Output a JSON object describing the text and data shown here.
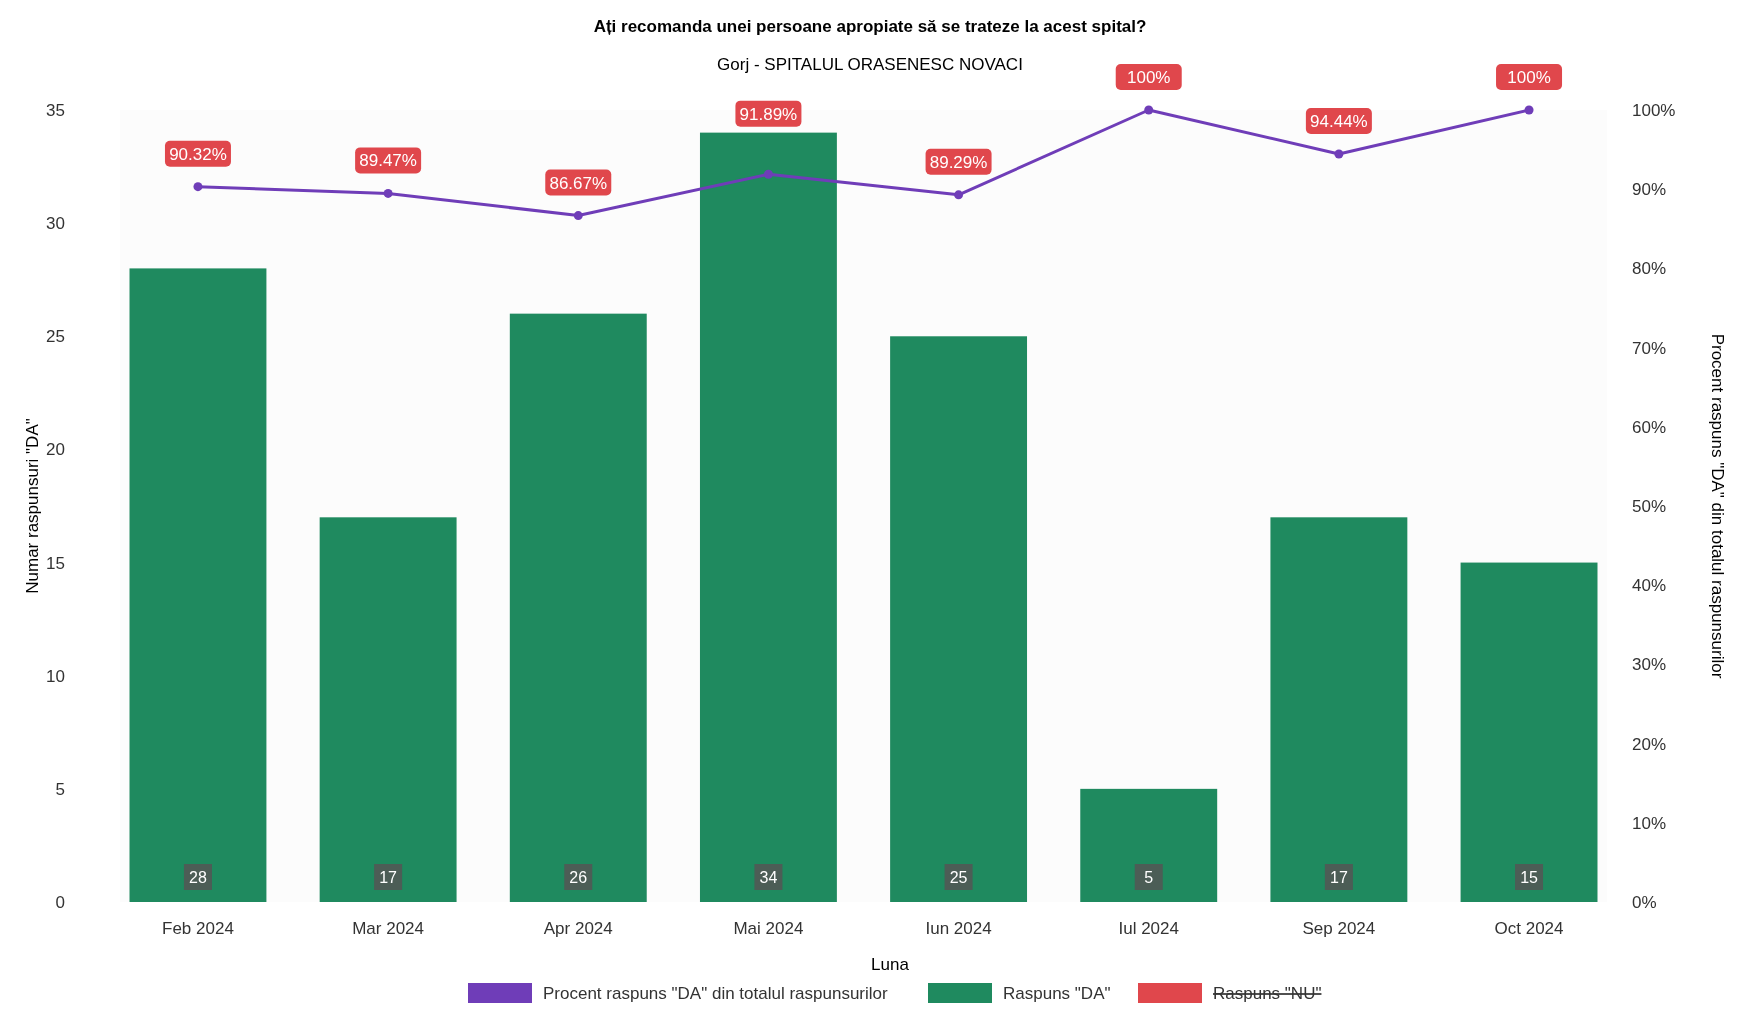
{
  "chart_data": {
    "type": "bar",
    "title": "Ați recomanda unei persoane apropiate să se trateze la acest spital?",
    "subtitle": "Gorj - SPITALUL ORASENESC NOVACI",
    "xlabel": "Luna",
    "ylabel": "Numar raspunsuri \"DA\"",
    "y2label": "Procent raspuns \"DA\" din totalul raspunsurilor",
    "categories": [
      "Feb 2024",
      "Mar 2024",
      "Apr 2024",
      "Mai 2024",
      "Iun 2024",
      "Iul 2024",
      "Sep 2024",
      "Oct 2024"
    ],
    "series": [
      {
        "name": "Procent raspuns \"DA\" din totalul raspunsurilor",
        "type": "line",
        "axis": "y2",
        "color": "#6f3db8",
        "values": [
          90.32,
          89.47,
          86.67,
          91.89,
          89.29,
          100,
          94.44,
          100
        ],
        "value_labels": [
          "90.32%",
          "89.47%",
          "86.67%",
          "91.89%",
          "89.29%",
          "100%",
          "94.44%",
          "100%"
        ]
      },
      {
        "name": "Raspuns \"DA\"",
        "color": "#1f8a5f",
        "values": [
          28,
          17,
          26,
          34,
          25,
          5,
          17,
          15
        ],
        "value_labels": [
          "28",
          "17",
          "26",
          "34",
          "25",
          "5",
          "17",
          "15"
        ]
      },
      {
        "name": "Raspuns \"NU\"",
        "color": "#e0474c",
        "values": [
          null,
          null,
          null,
          null,
          null,
          null,
          null,
          null
        ]
      }
    ],
    "ylim": [
      0,
      35
    ],
    "yticks": [
      0,
      5,
      10,
      15,
      20,
      25,
      30,
      35
    ],
    "y2lim": [
      0,
      100
    ],
    "y2ticks": [
      {
        "value": 0,
        "label": "0%"
      },
      {
        "value": 10,
        "label": "10%"
      },
      {
        "value": 20,
        "label": "20%"
      },
      {
        "value": 30,
        "label": "30%"
      },
      {
        "value": 40,
        "label": "40%"
      },
      {
        "value": 50,
        "label": "50%"
      },
      {
        "value": 60,
        "label": "60%"
      },
      {
        "value": 70,
        "label": "70%"
      },
      {
        "value": 80,
        "label": "80%"
      },
      {
        "value": 90,
        "label": "90%"
      },
      {
        "value": 100,
        "label": "100%"
      }
    ],
    "marker": "circle",
    "legend": "bottom",
    "grid": false
  }
}
